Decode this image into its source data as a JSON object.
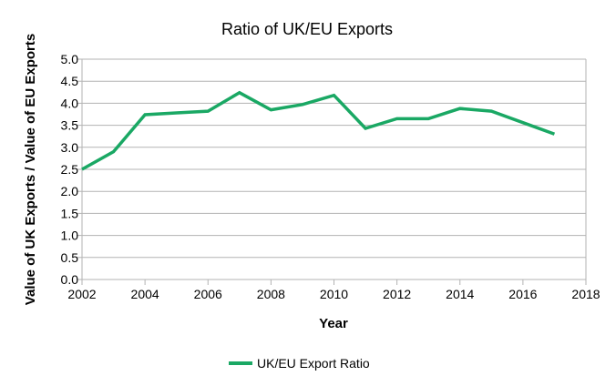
{
  "chart_data": {
    "type": "line",
    "title": "Ratio of UK/EU Exports",
    "xlabel": "Year",
    "ylabel": "Value of UK Exports / Value of EU Exports",
    "xlim": [
      2002,
      2018
    ],
    "ylim": [
      0,
      5
    ],
    "xticks": [
      2002,
      2004,
      2006,
      2008,
      2010,
      2012,
      2014,
      2016,
      2018
    ],
    "yticks": [
      "0.0",
      "0.5",
      "1.0",
      "1.5",
      "2.0",
      "2.5",
      "3.0",
      "3.5",
      "4.0",
      "4.5",
      "5.0"
    ],
    "grid": true,
    "legend_position": "bottom",
    "series": [
      {
        "name": "UK/EU Export Ratio",
        "color": "#1aa864",
        "x": [
          2002,
          2003,
          2004,
          2005,
          2006,
          2007,
          2008,
          2009,
          2010,
          2011,
          2012,
          2013,
          2014,
          2015,
          2016,
          2017
        ],
        "y": [
          2.5,
          2.9,
          3.74,
          3.78,
          3.82,
          4.24,
          3.85,
          3.97,
          4.18,
          3.43,
          3.65,
          3.65,
          3.88,
          3.82,
          3.56,
          3.3
        ]
      }
    ]
  }
}
